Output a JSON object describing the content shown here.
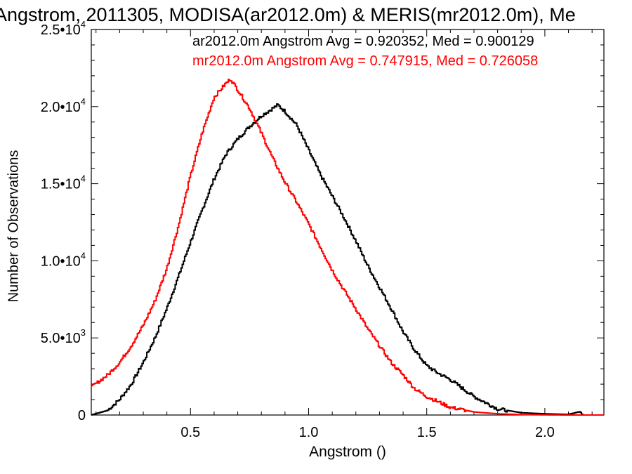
{
  "chart_data": {
    "type": "line",
    "title": "Angstrom, 2011305, MODISA(ar2012.0m) & MERIS(mr2012.0m), Me",
    "xlabel": "Angstrom ()",
    "ylabel": "Number of Observations",
    "xlim": [
      0.08,
      2.25
    ],
    "ylim": [
      0,
      25000
    ],
    "x_ticks": [
      {
        "value": 0.5,
        "label": "0.5"
      },
      {
        "value": 1.0,
        "label": "1.0"
      },
      {
        "value": 1.5,
        "label": "1.5"
      },
      {
        "value": 2.0,
        "label": "2.0"
      }
    ],
    "y_ticks": [
      {
        "value": 0,
        "mantissa": "0",
        "exponent": ""
      },
      {
        "value": 5000,
        "mantissa": "5.0•10",
        "exponent": "3"
      },
      {
        "value": 10000,
        "mantissa": "1.0•10",
        "exponent": "4"
      },
      {
        "value": 15000,
        "mantissa": "1.5•10",
        "exponent": "4"
      },
      {
        "value": 20000,
        "mantissa": "2.0•10",
        "exponent": "4"
      },
      {
        "value": 25000,
        "mantissa": "2.5•10",
        "exponent": "4"
      }
    ],
    "grid": false,
    "legend_position": "top-right",
    "series": [
      {
        "name": "ar2012.0m Angstrom Avg = 0.920352, Med = 0.900129",
        "color": "#000000",
        "x": [
          0.08,
          0.15,
          0.2,
          0.25,
          0.3,
          0.35,
          0.4,
          0.45,
          0.5,
          0.55,
          0.6,
          0.65,
          0.7,
          0.75,
          0.8,
          0.85,
          0.87,
          0.9,
          0.95,
          1.0,
          1.05,
          1.1,
          1.15,
          1.2,
          1.25,
          1.3,
          1.35,
          1.4,
          1.45,
          1.5,
          1.55,
          1.6,
          1.7,
          1.8,
          1.9,
          2.0,
          2.1,
          2.15,
          2.16,
          2.25
        ],
        "y": [
          0,
          300,
          1000,
          2000,
          3400,
          5000,
          6900,
          9000,
          11200,
          13300,
          15300,
          16900,
          17900,
          18700,
          19400,
          19900,
          20100,
          19700,
          18800,
          17200,
          15600,
          14200,
          12800,
          11300,
          9700,
          8300,
          6900,
          5400,
          4200,
          3200,
          2700,
          2300,
          1200,
          400,
          150,
          80,
          40,
          220,
          0,
          0
        ]
      },
      {
        "name": "mr2012.0m Angstrom Avg = 0.747915, Med = 0.726058",
        "color": "#ff0000",
        "x": [
          0.08,
          0.15,
          0.2,
          0.25,
          0.3,
          0.35,
          0.4,
          0.45,
          0.5,
          0.55,
          0.6,
          0.65,
          0.67,
          0.7,
          0.75,
          0.8,
          0.85,
          0.9,
          0.95,
          1.0,
          1.05,
          1.1,
          1.15,
          1.2,
          1.25,
          1.3,
          1.35,
          1.4,
          1.45,
          1.5,
          1.6,
          1.7,
          1.8,
          1.9,
          2.0,
          2.1,
          2.25
        ],
        "y": [
          1800,
          2600,
          3400,
          4500,
          5800,
          7400,
          9500,
          12300,
          15500,
          18300,
          20600,
          21500,
          21800,
          21100,
          19900,
          18300,
          16600,
          15100,
          13800,
          12400,
          10900,
          9400,
          8100,
          6900,
          5600,
          4500,
          3400,
          2600,
          1700,
          1200,
          500,
          200,
          80,
          30,
          10,
          0,
          0
        ]
      }
    ]
  }
}
